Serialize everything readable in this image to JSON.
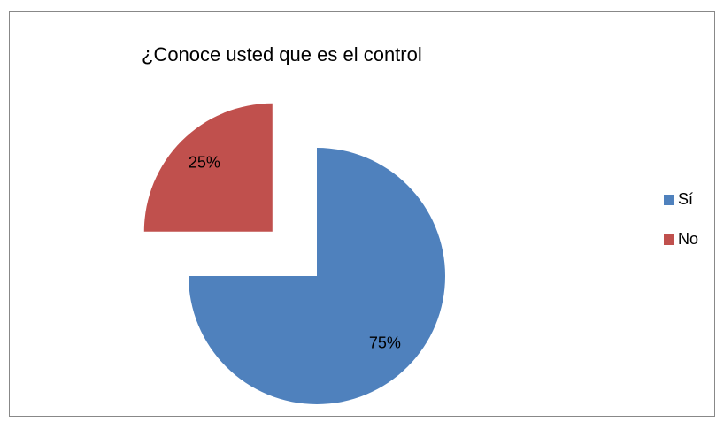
{
  "chart_data": {
    "type": "pie",
    "title": "¿Conoce usted que es el control",
    "categories": [
      "Sí",
      "No"
    ],
    "values": [
      75,
      25
    ],
    "value_labels": [
      "75%",
      "25%"
    ],
    "colors": [
      "#4f81bd",
      "#c0504d"
    ],
    "exploded": [
      false,
      true
    ],
    "legend": "right"
  }
}
